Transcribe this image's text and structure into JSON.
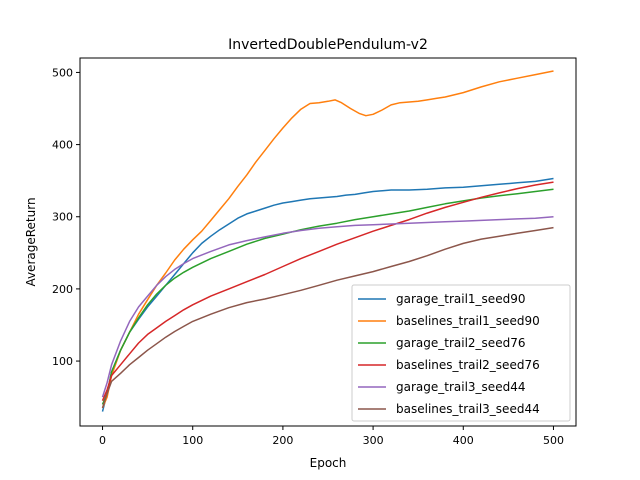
{
  "chart_data": {
    "type": "line",
    "title": "InvertedDoublePendulum-v2",
    "xlabel": "Epoch",
    "ylabel": "AverageReturn",
    "xlim": [
      -25,
      525
    ],
    "ylim": [
      10,
      520
    ],
    "xticks": [
      0,
      100,
      200,
      300,
      400,
      500
    ],
    "yticks": [
      100,
      200,
      300,
      400,
      500
    ],
    "grid": false,
    "legend_position": "lower-right",
    "series": [
      {
        "name": "garage_trail1_seed90",
        "color": "#1f77b4",
        "points": [
          [
            0,
            30
          ],
          [
            5,
            55
          ],
          [
            10,
            85
          ],
          [
            20,
            115
          ],
          [
            30,
            140
          ],
          [
            40,
            158
          ],
          [
            50,
            175
          ],
          [
            60,
            190
          ],
          [
            70,
            205
          ],
          [
            80,
            220
          ],
          [
            90,
            235
          ],
          [
            100,
            250
          ],
          [
            110,
            263
          ],
          [
            120,
            273
          ],
          [
            130,
            282
          ],
          [
            140,
            290
          ],
          [
            150,
            298
          ],
          [
            160,
            304
          ],
          [
            170,
            308
          ],
          [
            180,
            312
          ],
          [
            190,
            316
          ],
          [
            200,
            319
          ],
          [
            210,
            321
          ],
          [
            220,
            323
          ],
          [
            230,
            325
          ],
          [
            240,
            326
          ],
          [
            250,
            327
          ],
          [
            260,
            328
          ],
          [
            270,
            330
          ],
          [
            280,
            331
          ],
          [
            290,
            333
          ],
          [
            300,
            335
          ],
          [
            320,
            337
          ],
          [
            340,
            337
          ],
          [
            360,
            338
          ],
          [
            380,
            340
          ],
          [
            400,
            341
          ],
          [
            420,
            343
          ],
          [
            440,
            345
          ],
          [
            460,
            347
          ],
          [
            480,
            349
          ],
          [
            500,
            353
          ]
        ]
      },
      {
        "name": "baselines_trail1_seed90",
        "color": "#ff7f0e",
        "points": [
          [
            0,
            35
          ],
          [
            5,
            50
          ],
          [
            10,
            80
          ],
          [
            20,
            115
          ],
          [
            30,
            140
          ],
          [
            40,
            165
          ],
          [
            50,
            185
          ],
          [
            60,
            205
          ],
          [
            70,
            222
          ],
          [
            80,
            240
          ],
          [
            90,
            255
          ],
          [
            100,
            268
          ],
          [
            110,
            280
          ],
          [
            120,
            295
          ],
          [
            130,
            310
          ],
          [
            140,
            325
          ],
          [
            150,
            342
          ],
          [
            160,
            358
          ],
          [
            170,
            376
          ],
          [
            180,
            392
          ],
          [
            190,
            408
          ],
          [
            200,
            423
          ],
          [
            210,
            437
          ],
          [
            220,
            449
          ],
          [
            230,
            457
          ],
          [
            240,
            458
          ],
          [
            250,
            460
          ],
          [
            258,
            462
          ],
          [
            265,
            458
          ],
          [
            275,
            450
          ],
          [
            285,
            443
          ],
          [
            292,
            440
          ],
          [
            300,
            442
          ],
          [
            310,
            448
          ],
          [
            320,
            455
          ],
          [
            330,
            458
          ],
          [
            340,
            459
          ],
          [
            350,
            460
          ],
          [
            360,
            462
          ],
          [
            370,
            464
          ],
          [
            380,
            466
          ],
          [
            400,
            472
          ],
          [
            420,
            480
          ],
          [
            440,
            487
          ],
          [
            460,
            492
          ],
          [
            480,
            497
          ],
          [
            500,
            502
          ]
        ]
      },
      {
        "name": "garage_trail2_seed76",
        "color": "#2ca02c",
        "points": [
          [
            0,
            40
          ],
          [
            5,
            55
          ],
          [
            10,
            85
          ],
          [
            20,
            115
          ],
          [
            30,
            140
          ],
          [
            40,
            160
          ],
          [
            50,
            178
          ],
          [
            60,
            193
          ],
          [
            70,
            205
          ],
          [
            80,
            215
          ],
          [
            90,
            223
          ],
          [
            100,
            230
          ],
          [
            120,
            242
          ],
          [
            140,
            252
          ],
          [
            160,
            262
          ],
          [
            180,
            270
          ],
          [
            200,
            276
          ],
          [
            220,
            282
          ],
          [
            240,
            287
          ],
          [
            260,
            291
          ],
          [
            280,
            296
          ],
          [
            300,
            300
          ],
          [
            320,
            304
          ],
          [
            340,
            308
          ],
          [
            360,
            313
          ],
          [
            380,
            318
          ],
          [
            400,
            322
          ],
          [
            420,
            326
          ],
          [
            440,
            329
          ],
          [
            460,
            332
          ],
          [
            480,
            335
          ],
          [
            500,
            338
          ]
        ]
      },
      {
        "name": "baselines_trail2_seed76",
        "color": "#d62728",
        "points": [
          [
            0,
            45
          ],
          [
            5,
            60
          ],
          [
            10,
            80
          ],
          [
            20,
            95
          ],
          [
            30,
            110
          ],
          [
            40,
            125
          ],
          [
            50,
            137
          ],
          [
            60,
            146
          ],
          [
            70,
            155
          ],
          [
            80,
            163
          ],
          [
            90,
            171
          ],
          [
            100,
            178
          ],
          [
            120,
            190
          ],
          [
            140,
            200
          ],
          [
            160,
            210
          ],
          [
            180,
            220
          ],
          [
            200,
            231
          ],
          [
            220,
            242
          ],
          [
            240,
            252
          ],
          [
            260,
            262
          ],
          [
            280,
            271
          ],
          [
            300,
            280
          ],
          [
            320,
            288
          ],
          [
            340,
            296
          ],
          [
            360,
            305
          ],
          [
            380,
            313
          ],
          [
            400,
            320
          ],
          [
            420,
            327
          ],
          [
            440,
            333
          ],
          [
            460,
            339
          ],
          [
            480,
            344
          ],
          [
            500,
            348
          ]
        ]
      },
      {
        "name": "garage_trail3_seed44",
        "color": "#9467bd",
        "points": [
          [
            0,
            50
          ],
          [
            5,
            70
          ],
          [
            10,
            95
          ],
          [
            20,
            128
          ],
          [
            30,
            155
          ],
          [
            40,
            175
          ],
          [
            50,
            190
          ],
          [
            60,
            205
          ],
          [
            70,
            217
          ],
          [
            80,
            227
          ],
          [
            90,
            235
          ],
          [
            100,
            242
          ],
          [
            120,
            252
          ],
          [
            140,
            261
          ],
          [
            160,
            267
          ],
          [
            180,
            272
          ],
          [
            200,
            277
          ],
          [
            220,
            281
          ],
          [
            240,
            284
          ],
          [
            260,
            286
          ],
          [
            280,
            288
          ],
          [
            300,
            289
          ],
          [
            320,
            290
          ],
          [
            340,
            291
          ],
          [
            360,
            292
          ],
          [
            380,
            293
          ],
          [
            400,
            294
          ],
          [
            420,
            295
          ],
          [
            440,
            296
          ],
          [
            460,
            297
          ],
          [
            480,
            298
          ],
          [
            500,
            300
          ]
        ]
      },
      {
        "name": "baselines_trail3_seed44",
        "color": "#8c564b",
        "points": [
          [
            0,
            35
          ],
          [
            5,
            55
          ],
          [
            10,
            72
          ],
          [
            20,
            83
          ],
          [
            30,
            95
          ],
          [
            40,
            105
          ],
          [
            50,
            115
          ],
          [
            60,
            124
          ],
          [
            70,
            133
          ],
          [
            80,
            141
          ],
          [
            90,
            148
          ],
          [
            100,
            155
          ],
          [
            120,
            165
          ],
          [
            140,
            174
          ],
          [
            160,
            181
          ],
          [
            180,
            186
          ],
          [
            200,
            192
          ],
          [
            220,
            198
          ],
          [
            240,
            205
          ],
          [
            260,
            212
          ],
          [
            280,
            218
          ],
          [
            300,
            224
          ],
          [
            320,
            231
          ],
          [
            340,
            238
          ],
          [
            360,
            246
          ],
          [
            380,
            255
          ],
          [
            400,
            263
          ],
          [
            420,
            269
          ],
          [
            440,
            273
          ],
          [
            460,
            277
          ],
          [
            480,
            281
          ],
          [
            500,
            285
          ]
        ]
      }
    ]
  }
}
